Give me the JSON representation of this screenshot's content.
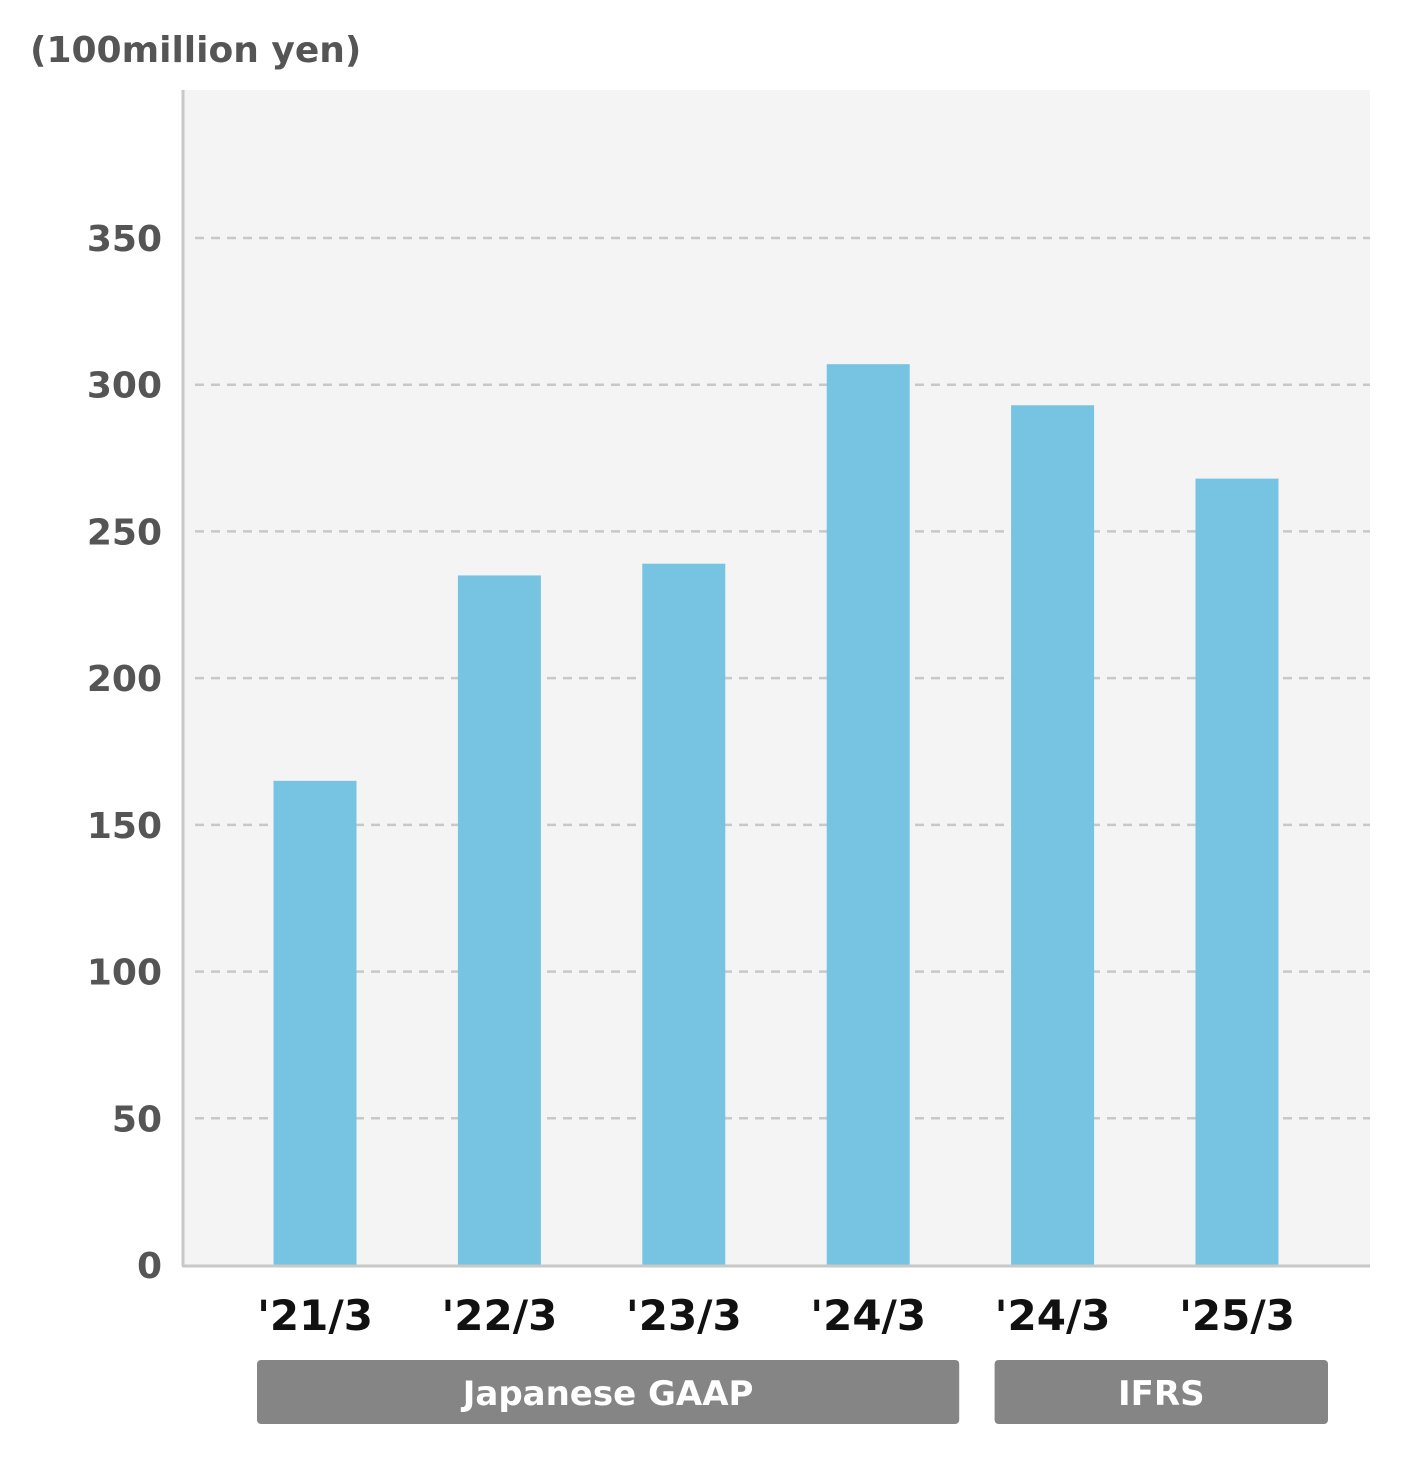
{
  "chart_data": {
    "type": "bar",
    "unit_label": "(100million yen)",
    "categories": [
      "'21/3",
      "'22/3",
      "'23/3",
      "'24/3",
      "'24/3",
      "'25/3"
    ],
    "values": [
      165,
      235,
      239,
      307,
      293,
      268
    ],
    "ylim": [
      0,
      390
    ],
    "yticks": [
      0,
      50,
      100,
      150,
      200,
      250,
      300,
      350
    ],
    "grid": true,
    "groups": [
      {
        "label": "Japanese GAAP",
        "from": 0,
        "to": 3
      },
      {
        "label": "IFRS",
        "from": 4,
        "to": 5
      }
    ],
    "colors": {
      "bar": "#76c4e2",
      "plot_bg": "#f4f4f4",
      "grid": "#c8c8c8",
      "axis": "#c8c8c8",
      "group_box": "#858585",
      "tick_text": "#555555"
    }
  }
}
